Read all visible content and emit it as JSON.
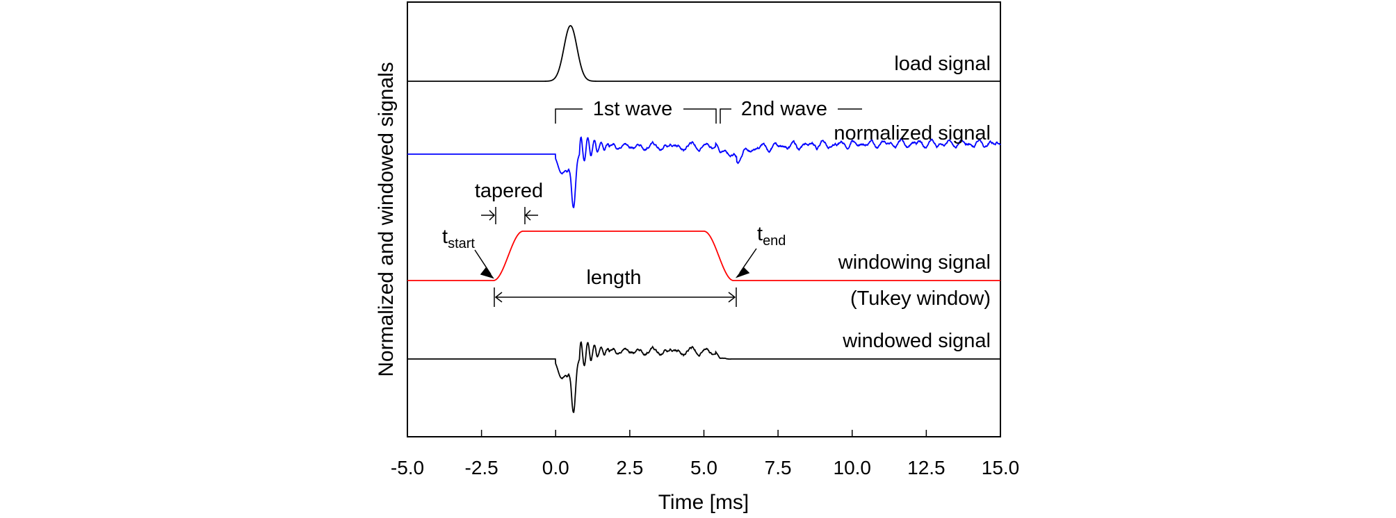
{
  "chart_data": {
    "type": "line",
    "title": "",
    "xlabel": "Time [ms]",
    "ylabel": "Normalized and windowed signals",
    "xlim": [
      -5.0,
      15.0
    ],
    "x_ticks": [
      -5.0,
      -2.5,
      0.0,
      2.5,
      5.0,
      7.5,
      10.0,
      12.5,
      15.0
    ],
    "x_tick_labels": [
      "-5.0",
      "-2.5",
      "0.0",
      "2.5",
      "5.0",
      "7.5",
      "10.0",
      "12.5",
      "15.0"
    ],
    "grid": false,
    "y_axis_ticks": false,
    "series": [
      {
        "name": "load signal",
        "color": "#000000",
        "t_range": [
          -5.0,
          15.0
        ],
        "peak_time": 0.5,
        "relative_amplitude": 1.0
      },
      {
        "name": "normalized signal",
        "color": "#0000ff",
        "t_range": [
          -5.0,
          15.0
        ],
        "onset_time": 0.0,
        "min_time": 0.6
      },
      {
        "name": "windowing signal",
        "sub_label": "(Tukey window)",
        "color": "#ff0000",
        "t_range": [
          -5.0,
          15.0
        ],
        "t_start": -2.1,
        "t_end": 6.0,
        "taper": 1.0
      },
      {
        "name": "windowed signal",
        "color": "#000000",
        "t_range": [
          -5.0,
          15.0
        ],
        "window": [
          -2.1,
          6.0
        ]
      }
    ],
    "annotations": {
      "first_wave": "1st wave",
      "second_wave": "2nd wave",
      "tapered": "tapered",
      "length": "length",
      "t_start": {
        "base": "t",
        "sub": "start"
      },
      "t_end": {
        "base": "t",
        "sub": "end"
      }
    }
  }
}
